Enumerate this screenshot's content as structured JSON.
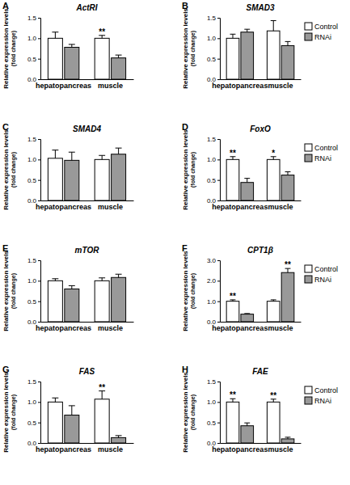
{
  "chart_data": [
    {
      "type": "bar",
      "panel": "A",
      "title": "ActRI",
      "y_label": [
        "Relative expression levels",
        "(fold change)"
      ],
      "categories": [
        "hepatopancreas",
        "muscle"
      ],
      "series": [
        {
          "name": "Control",
          "color": "#ffffff",
          "values": [
            1.0,
            1.0
          ],
          "errors": [
            0.15,
            0.07
          ],
          "significance": [
            null,
            "**"
          ]
        },
        {
          "name": "RNAi",
          "color": "#999999",
          "values": [
            0.78,
            0.52
          ],
          "errors": [
            0.07,
            0.07
          ],
          "significance": [
            null,
            null
          ]
        }
      ],
      "ylim": [
        0,
        1.5
      ],
      "yticks": [
        {
          "value": 0,
          "label": "0.0"
        },
        0.5,
        {
          "value": 1,
          "label": "1.0"
        },
        1.5
      ],
      "grid": false
    },
    {
      "type": "bar",
      "panel": "B",
      "title": "SMAD3",
      "y_label": [
        "Relative expression levels",
        "(fold change)"
      ],
      "categories": [
        "hepatopancreas",
        "muscle"
      ],
      "series": [
        {
          "name": "Control",
          "color": "#ffffff",
          "values": [
            1.0,
            1.18
          ],
          "errors": [
            0.1,
            0.25
          ],
          "significance": [
            null,
            null
          ]
        },
        {
          "name": "RNAi",
          "color": "#999999",
          "values": [
            1.15,
            0.82
          ],
          "errors": [
            0.07,
            0.1
          ],
          "significance": [
            null,
            null
          ]
        }
      ],
      "ylim": [
        0,
        1.5
      ],
      "yticks": [
        {
          "value": 0,
          "label": "0.0"
        },
        0.5,
        {
          "value": 1,
          "label": "1.0"
        },
        1.5
      ],
      "grid": false,
      "legend": "upper right"
    },
    {
      "type": "bar",
      "panel": "C",
      "title": "SMAD4",
      "y_label": [
        "Relative expression levels",
        "(fold change)"
      ],
      "categories": [
        "hepatopancreas",
        "muscle"
      ],
      "series": [
        {
          "name": "Control",
          "color": "#ffffff",
          "values": [
            1.03,
            1.0
          ],
          "errors": [
            0.2,
            0.1
          ],
          "significance": [
            null,
            null
          ]
        },
        {
          "name": "RNAi",
          "color": "#999999",
          "values": [
            0.98,
            1.13
          ],
          "errors": [
            0.2,
            0.15
          ],
          "significance": [
            null,
            null
          ]
        }
      ],
      "ylim": [
        0,
        1.5
      ],
      "yticks": [
        {
          "value": 0,
          "label": "0.0"
        },
        0.5,
        {
          "value": 1,
          "label": "1.0"
        },
        1.5
      ],
      "grid": false
    },
    {
      "type": "bar",
      "panel": "D",
      "title": "FoxO",
      "y_label": [
        "Relative expression levels",
        "(fold change)"
      ],
      "categories": [
        "hepatopancreas",
        "muscle"
      ],
      "series": [
        {
          "name": "Control",
          "color": "#ffffff",
          "values": [
            1.0,
            1.0
          ],
          "errors": [
            0.07,
            0.07
          ],
          "significance": [
            "**",
            "*"
          ]
        },
        {
          "name": "RNAi",
          "color": "#999999",
          "values": [
            0.44,
            0.62
          ],
          "errors": [
            0.1,
            0.08
          ],
          "significance": [
            null,
            null
          ]
        }
      ],
      "ylim": [
        0,
        1.5
      ],
      "yticks": [
        {
          "value": 0,
          "label": "0.0"
        },
        0.5,
        {
          "value": 1,
          "label": "1.0"
        },
        1.5
      ],
      "grid": false,
      "legend": "upper right"
    },
    {
      "type": "bar",
      "panel": "E",
      "title": "mTOR",
      "y_label": [
        "Relative expression levels",
        "(fold change)"
      ],
      "categories": [
        "hepatopancreas",
        "muscle"
      ],
      "series": [
        {
          "name": "Control",
          "color": "#ffffff",
          "values": [
            1.0,
            1.0
          ],
          "errors": [
            0.05,
            0.07
          ],
          "significance": [
            null,
            null
          ]
        },
        {
          "name": "RNAi",
          "color": "#999999",
          "values": [
            0.8,
            1.08
          ],
          "errors": [
            0.08,
            0.08
          ],
          "significance": [
            null,
            null
          ]
        }
      ],
      "ylim": [
        0,
        1.5
      ],
      "yticks": [
        {
          "value": 0,
          "label": "0.0"
        },
        0.5,
        {
          "value": 1,
          "label": "1.0"
        },
        1.5
      ],
      "grid": false
    },
    {
      "type": "bar",
      "panel": "F",
      "title": "CPT1β",
      "y_label": [
        "Relative expression levels",
        "(fold change)"
      ],
      "categories": [
        "hepatopancreas",
        "muscle"
      ],
      "series": [
        {
          "name": "Control",
          "color": "#ffffff",
          "values": [
            1.0,
            1.0
          ],
          "errors": [
            0.07,
            0.07
          ],
          "significance": [
            "**",
            null
          ]
        },
        {
          "name": "RNAi",
          "color": "#999999",
          "values": [
            0.37,
            2.4
          ],
          "errors": [
            0.03,
            0.2
          ],
          "significance": [
            null,
            "**"
          ]
        }
      ],
      "ylim": [
        0,
        3
      ],
      "yticks": [
        {
          "value": 0,
          "label": "0.0"
        },
        {
          "value": 1,
          "label": "1.0"
        },
        {
          "value": 2,
          "label": "2.0"
        },
        {
          "value": 3,
          "label": "3.0"
        }
      ],
      "grid": false,
      "legend": "upper right"
    },
    {
      "type": "bar",
      "panel": "G",
      "title": "FAS",
      "y_label": [
        "Relative expression levels",
        "(fold change)"
      ],
      "categories": [
        "hepatopancreas",
        "muscle"
      ],
      "series": [
        {
          "name": "Control",
          "color": "#ffffff",
          "values": [
            1.0,
            1.07
          ],
          "errors": [
            0.1,
            0.2
          ],
          "significance": [
            null,
            "**"
          ]
        },
        {
          "name": "RNAi",
          "color": "#999999",
          "values": [
            0.68,
            0.13
          ],
          "errors": [
            0.23,
            0.05
          ],
          "significance": [
            null,
            null
          ]
        }
      ],
      "ylim": [
        0,
        1.5
      ],
      "yticks": [
        {
          "value": 0,
          "label": "0.0"
        },
        0.5,
        {
          "value": 1,
          "label": "1.0"
        },
        1.5
      ],
      "grid": false
    },
    {
      "type": "bar",
      "panel": "H",
      "title": "FAE",
      "y_label": [
        "Relative expression levels",
        "(fold change)"
      ],
      "categories": [
        "hepatopancreas",
        "muscle"
      ],
      "series": [
        {
          "name": "Control",
          "color": "#ffffff",
          "values": [
            1.0,
            1.0
          ],
          "errors": [
            0.08,
            0.07
          ],
          "significance": [
            "**",
            "**"
          ]
        },
        {
          "name": "RNAi",
          "color": "#999999",
          "values": [
            0.42,
            0.1
          ],
          "errors": [
            0.07,
            0.04
          ],
          "significance": [
            null,
            null
          ]
        }
      ],
      "ylim": [
        0,
        1.5
      ],
      "yticks": [
        {
          "value": 0,
          "label": "0.0"
        },
        0.5,
        {
          "value": 1,
          "label": "1.0"
        },
        1.5
      ],
      "grid": false,
      "legend": "upper right"
    }
  ]
}
